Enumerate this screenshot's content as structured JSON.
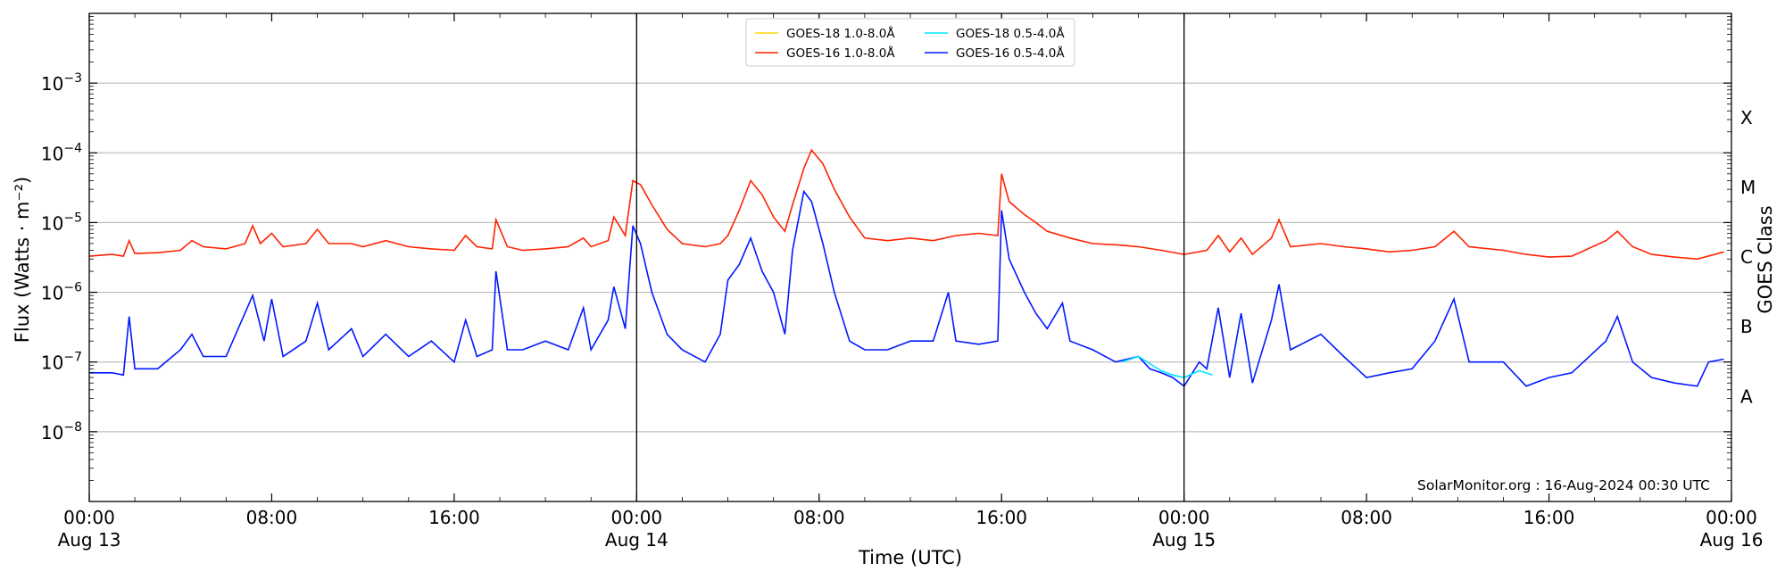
{
  "chart_data": {
    "type": "line",
    "xlabel": "Time (UTC)",
    "ylabel": "Flux (Watts · m⁻²)",
    "y2label": "GOES Class",
    "y_scale": "log",
    "ylim": [
      1e-09,
      0.01
    ],
    "xlim": [
      "2024-08-13 00:00",
      "2024-08-16 00:00"
    ],
    "grid": "horizontal",
    "legend_position": "top-center",
    "credit": "SolarMonitor.org : 16-Aug-2024 00:30 UTC",
    "y_ticks": [
      {
        "value": 1e-08,
        "base": "10",
        "exp": "−8"
      },
      {
        "value": 1e-07,
        "base": "10",
        "exp": "−7"
      },
      {
        "value": 1e-06,
        "base": "10",
        "exp": "−6"
      },
      {
        "value": 1e-05,
        "base": "10",
        "exp": "−5"
      },
      {
        "value": 0.0001,
        "base": "10",
        "exp": "−4"
      },
      {
        "value": 0.001,
        "base": "10",
        "exp": "−3"
      }
    ],
    "x_ticks": [
      {
        "time": "2024-08-13 00:00",
        "label": "00:00",
        "sublabel": "Aug 13"
      },
      {
        "time": "2024-08-13 08:00",
        "label": "08:00",
        "sublabel": ""
      },
      {
        "time": "2024-08-13 16:00",
        "label": "16:00",
        "sublabel": ""
      },
      {
        "time": "2024-08-14 00:00",
        "label": "00:00",
        "sublabel": "Aug 14"
      },
      {
        "time": "2024-08-14 08:00",
        "label": "08:00",
        "sublabel": ""
      },
      {
        "time": "2024-08-14 16:00",
        "label": "16:00",
        "sublabel": ""
      },
      {
        "time": "2024-08-15 00:00",
        "label": "00:00",
        "sublabel": "Aug 15"
      },
      {
        "time": "2024-08-15 08:00",
        "label": "08:00",
        "sublabel": ""
      },
      {
        "time": "2024-08-15 16:00",
        "label": "16:00",
        "sublabel": ""
      },
      {
        "time": "2024-08-16 00:00",
        "label": "00:00",
        "sublabel": "Aug 16"
      }
    ],
    "day_boundaries": [
      "2024-08-14 00:00",
      "2024-08-15 00:00"
    ],
    "class_labels": [
      {
        "label": "A",
        "value": 3.2e-08
      },
      {
        "label": "B",
        "value": 3.2e-07
      },
      {
        "label": "C",
        "value": 3.2e-06
      },
      {
        "label": "M",
        "value": 3.2e-05
      },
      {
        "label": "X",
        "value": 0.00032
      }
    ],
    "series": [
      {
        "name": "GOES-18 1.0-8.0Å",
        "color": "#ffd700",
        "points": []
      },
      {
        "name": "GOES-18 0.5-4.0Å",
        "color": "#00e5ff",
        "points": [
          [
            "2024-08-14 21:15",
            1e-07
          ],
          [
            "2024-08-14 22:00",
            1.2e-07
          ],
          [
            "2024-08-14 22:30",
            9.5e-08
          ],
          [
            "2024-08-14 23:00",
            7.5e-08
          ],
          [
            "2024-08-14 23:30",
            6.5e-08
          ],
          [
            "2024-08-15 00:00",
            6e-08
          ],
          [
            "2024-08-15 00:40",
            7.5e-08
          ],
          [
            "2024-08-15 01:15",
            6.5e-08
          ]
        ]
      },
      {
        "name": "GOES-16 1.0-8.0Å",
        "color": "#ff2200",
        "points": [
          [
            "2024-08-13 00:00",
            3.3e-06
          ],
          [
            "2024-08-13 01:00",
            3.5e-06
          ],
          [
            "2024-08-13 01:30",
            3.3e-06
          ],
          [
            "2024-08-13 01:45",
            5.5e-06
          ],
          [
            "2024-08-13 02:00",
            3.6e-06
          ],
          [
            "2024-08-13 03:00",
            3.7e-06
          ],
          [
            "2024-08-13 04:00",
            4e-06
          ],
          [
            "2024-08-13 04:30",
            5.5e-06
          ],
          [
            "2024-08-13 05:00",
            4.5e-06
          ],
          [
            "2024-08-13 06:00",
            4.2e-06
          ],
          [
            "2024-08-13 06:50",
            5e-06
          ],
          [
            "2024-08-13 07:10",
            9e-06
          ],
          [
            "2024-08-13 07:30",
            5e-06
          ],
          [
            "2024-08-13 08:00",
            7e-06
          ],
          [
            "2024-08-13 08:30",
            4.5e-06
          ],
          [
            "2024-08-13 09:30",
            5e-06
          ],
          [
            "2024-08-13 10:00",
            8e-06
          ],
          [
            "2024-08-13 10:30",
            5e-06
          ],
          [
            "2024-08-13 11:30",
            5e-06
          ],
          [
            "2024-08-13 12:00",
            4.5e-06
          ],
          [
            "2024-08-13 13:00",
            5.5e-06
          ],
          [
            "2024-08-13 14:00",
            4.5e-06
          ],
          [
            "2024-08-13 15:00",
            4.2e-06
          ],
          [
            "2024-08-13 16:00",
            4e-06
          ],
          [
            "2024-08-13 16:30",
            6.5e-06
          ],
          [
            "2024-08-13 17:00",
            4.5e-06
          ],
          [
            "2024-08-13 17:40",
            4.2e-06
          ],
          [
            "2024-08-13 17:50",
            1.1e-05
          ],
          [
            "2024-08-13 18:20",
            4.5e-06
          ],
          [
            "2024-08-13 19:00",
            4e-06
          ],
          [
            "2024-08-13 20:00",
            4.2e-06
          ],
          [
            "2024-08-13 21:00",
            4.5e-06
          ],
          [
            "2024-08-13 21:40",
            6e-06
          ],
          [
            "2024-08-13 22:00",
            4.5e-06
          ],
          [
            "2024-08-13 22:45",
            5.5e-06
          ],
          [
            "2024-08-13 23:00",
            1.2e-05
          ],
          [
            "2024-08-13 23:30",
            6.5e-06
          ],
          [
            "2024-08-13 23:50",
            4e-05
          ],
          [
            "2024-08-14 00:10",
            3.5e-05
          ],
          [
            "2024-08-14 00:40",
            1.8e-05
          ],
          [
            "2024-08-14 01:20",
            8e-06
          ],
          [
            "2024-08-14 02:00",
            5e-06
          ],
          [
            "2024-08-14 03:00",
            4.5e-06
          ],
          [
            "2024-08-14 03:40",
            5e-06
          ],
          [
            "2024-08-14 04:00",
            6.5e-06
          ],
          [
            "2024-08-14 04:30",
            1.5e-05
          ],
          [
            "2024-08-14 05:00",
            4e-05
          ],
          [
            "2024-08-14 05:30",
            2.5e-05
          ],
          [
            "2024-08-14 06:00",
            1.2e-05
          ],
          [
            "2024-08-14 06:30",
            7.5e-06
          ],
          [
            "2024-08-14 06:50",
            1.8e-05
          ],
          [
            "2024-08-14 07:20",
            6e-05
          ],
          [
            "2024-08-14 07:40",
            0.00011
          ],
          [
            "2024-08-14 08:10",
            7e-05
          ],
          [
            "2024-08-14 08:40",
            3e-05
          ],
          [
            "2024-08-14 09:20",
            1.2e-05
          ],
          [
            "2024-08-14 10:00",
            6e-06
          ],
          [
            "2024-08-14 11:00",
            5.5e-06
          ],
          [
            "2024-08-14 12:00",
            6e-06
          ],
          [
            "2024-08-14 13:00",
            5.5e-06
          ],
          [
            "2024-08-14 14:00",
            6.5e-06
          ],
          [
            "2024-08-14 15:00",
            7e-06
          ],
          [
            "2024-08-14 15:50",
            6.5e-06
          ],
          [
            "2024-08-14 16:00",
            5e-05
          ],
          [
            "2024-08-14 16:20",
            2e-05
          ],
          [
            "2024-08-14 17:00",
            1.3e-05
          ],
          [
            "2024-08-14 17:30",
            1e-05
          ],
          [
            "2024-08-14 18:00",
            7.5e-06
          ],
          [
            "2024-08-14 19:00",
            6e-06
          ],
          [
            "2024-08-14 20:00",
            5e-06
          ],
          [
            "2024-08-14 21:00",
            4.8e-06
          ],
          [
            "2024-08-14 22:00",
            4.5e-06
          ],
          [
            "2024-08-14 23:00",
            4e-06
          ],
          [
            "2024-08-15 00:00",
            3.5e-06
          ],
          [
            "2024-08-15 01:00",
            4e-06
          ],
          [
            "2024-08-15 01:30",
            6.5e-06
          ],
          [
            "2024-08-15 02:00",
            3.8e-06
          ],
          [
            "2024-08-15 02:30",
            6e-06
          ],
          [
            "2024-08-15 03:00",
            3.5e-06
          ],
          [
            "2024-08-15 03:50",
            6e-06
          ],
          [
            "2024-08-15 04:10",
            1.1e-05
          ],
          [
            "2024-08-15 04:40",
            4.5e-06
          ],
          [
            "2024-08-15 06:00",
            5e-06
          ],
          [
            "2024-08-15 07:00",
            4.5e-06
          ],
          [
            "2024-08-15 08:00",
            4.2e-06
          ],
          [
            "2024-08-15 09:00",
            3.8e-06
          ],
          [
            "2024-08-15 10:00",
            4e-06
          ],
          [
            "2024-08-15 11:00",
            4.5e-06
          ],
          [
            "2024-08-15 11:50",
            7.5e-06
          ],
          [
            "2024-08-15 12:30",
            4.5e-06
          ],
          [
            "2024-08-15 14:00",
            4e-06
          ],
          [
            "2024-08-15 15:00",
            3.5e-06
          ],
          [
            "2024-08-15 16:00",
            3.2e-06
          ],
          [
            "2024-08-15 17:00",
            3.3e-06
          ],
          [
            "2024-08-15 18:30",
            5.5e-06
          ],
          [
            "2024-08-15 19:00",
            7.5e-06
          ],
          [
            "2024-08-15 19:40",
            4.5e-06
          ],
          [
            "2024-08-15 20:30",
            3.5e-06
          ],
          [
            "2024-08-15 21:30",
            3.2e-06
          ],
          [
            "2024-08-15 22:30",
            3e-06
          ],
          [
            "2024-08-15 23:40",
            3.8e-06
          ]
        ]
      },
      {
        "name": "GOES-16 0.5-4.0Å",
        "color": "#0018ff",
        "points": [
          [
            "2024-08-13 00:00",
            7e-08
          ],
          [
            "2024-08-13 01:00",
            7e-08
          ],
          [
            "2024-08-13 01:30",
            6.5e-08
          ],
          [
            "2024-08-13 01:45",
            4.5e-07
          ],
          [
            "2024-08-13 02:00",
            8e-08
          ],
          [
            "2024-08-13 03:00",
            8e-08
          ],
          [
            "2024-08-13 04:00",
            1.5e-07
          ],
          [
            "2024-08-13 04:30",
            2.5e-07
          ],
          [
            "2024-08-13 05:00",
            1.2e-07
          ],
          [
            "2024-08-13 06:00",
            1.2e-07
          ],
          [
            "2024-08-13 07:10",
            9e-07
          ],
          [
            "2024-08-13 07:40",
            2e-07
          ],
          [
            "2024-08-13 08:00",
            8e-07
          ],
          [
            "2024-08-13 08:30",
            1.2e-07
          ],
          [
            "2024-08-13 09:30",
            2e-07
          ],
          [
            "2024-08-13 10:00",
            7e-07
          ],
          [
            "2024-08-13 10:30",
            1.5e-07
          ],
          [
            "2024-08-13 11:30",
            3e-07
          ],
          [
            "2024-08-13 12:00",
            1.2e-07
          ],
          [
            "2024-08-13 13:00",
            2.5e-07
          ],
          [
            "2024-08-13 14:00",
            1.2e-07
          ],
          [
            "2024-08-13 15:00",
            2e-07
          ],
          [
            "2024-08-13 16:00",
            1e-07
          ],
          [
            "2024-08-13 16:30",
            4e-07
          ],
          [
            "2024-08-13 17:00",
            1.2e-07
          ],
          [
            "2024-08-13 17:40",
            1.5e-07
          ],
          [
            "2024-08-13 17:50",
            2e-06
          ],
          [
            "2024-08-13 18:20",
            1.5e-07
          ],
          [
            "2024-08-13 19:00",
            1.5e-07
          ],
          [
            "2024-08-13 20:00",
            2e-07
          ],
          [
            "2024-08-13 21:00",
            1.5e-07
          ],
          [
            "2024-08-13 21:40",
            6e-07
          ],
          [
            "2024-08-13 22:00",
            1.5e-07
          ],
          [
            "2024-08-13 22:45",
            4e-07
          ],
          [
            "2024-08-13 23:00",
            1.2e-06
          ],
          [
            "2024-08-13 23:30",
            3e-07
          ],
          [
            "2024-08-13 23:50",
            9e-06
          ],
          [
            "2024-08-14 00:10",
            5e-06
          ],
          [
            "2024-08-14 00:40",
            1e-06
          ],
          [
            "2024-08-14 01:20",
            2.5e-07
          ],
          [
            "2024-08-14 02:00",
            1.5e-07
          ],
          [
            "2024-08-14 03:00",
            1e-07
          ],
          [
            "2024-08-14 03:40",
            2.5e-07
          ],
          [
            "2024-08-14 04:00",
            1.5e-06
          ],
          [
            "2024-08-14 04:30",
            2.5e-06
          ],
          [
            "2024-08-14 05:00",
            6e-06
          ],
          [
            "2024-08-14 05:30",
            2e-06
          ],
          [
            "2024-08-14 06:00",
            1e-06
          ],
          [
            "2024-08-14 06:30",
            2.5e-07
          ],
          [
            "2024-08-14 06:50",
            4e-06
          ],
          [
            "2024-08-14 07:20",
            2.8e-05
          ],
          [
            "2024-08-14 07:40",
            2e-05
          ],
          [
            "2024-08-14 08:10",
            5e-06
          ],
          [
            "2024-08-14 08:40",
            1e-06
          ],
          [
            "2024-08-14 09:20",
            2e-07
          ],
          [
            "2024-08-14 10:00",
            1.5e-07
          ],
          [
            "2024-08-14 11:00",
            1.5e-07
          ],
          [
            "2024-08-14 12:00",
            2e-07
          ],
          [
            "2024-08-14 13:00",
            2e-07
          ],
          [
            "2024-08-14 13:40",
            1e-06
          ],
          [
            "2024-08-14 14:00",
            2e-07
          ],
          [
            "2024-08-14 15:00",
            1.8e-07
          ],
          [
            "2024-08-14 15:50",
            2e-07
          ],
          [
            "2024-08-14 16:00",
            1.5e-05
          ],
          [
            "2024-08-14 16:20",
            3e-06
          ],
          [
            "2024-08-14 17:00",
            1e-06
          ],
          [
            "2024-08-14 17:30",
            5e-07
          ],
          [
            "2024-08-14 18:00",
            3e-07
          ],
          [
            "2024-08-14 18:40",
            7e-07
          ],
          [
            "2024-08-14 19:00",
            2e-07
          ],
          [
            "2024-08-14 20:00",
            1.5e-07
          ],
          [
            "2024-08-14 21:00",
            1e-07
          ],
          [
            "2024-08-14 22:00",
            1.2e-07
          ],
          [
            "2024-08-14 22:30",
            8e-08
          ],
          [
            "2024-08-14 23:00",
            7e-08
          ],
          [
            "2024-08-14 23:30",
            6e-08
          ],
          [
            "2024-08-15 00:00",
            4.5e-08
          ],
          [
            "2024-08-15 00:40",
            1e-07
          ],
          [
            "2024-08-15 01:00",
            8e-08
          ],
          [
            "2024-08-15 01:30",
            6e-07
          ],
          [
            "2024-08-15 02:00",
            6e-08
          ],
          [
            "2024-08-15 02:30",
            5e-07
          ],
          [
            "2024-08-15 03:00",
            5e-08
          ],
          [
            "2024-08-15 03:50",
            4e-07
          ],
          [
            "2024-08-15 04:10",
            1.3e-06
          ],
          [
            "2024-08-15 04:40",
            1.5e-07
          ],
          [
            "2024-08-15 06:00",
            2.5e-07
          ],
          [
            "2024-08-15 07:00",
            1.2e-07
          ],
          [
            "2024-08-15 08:00",
            6e-08
          ],
          [
            "2024-08-15 09:00",
            7e-08
          ],
          [
            "2024-08-15 10:00",
            8e-08
          ],
          [
            "2024-08-15 11:00",
            2e-07
          ],
          [
            "2024-08-15 11:50",
            8e-07
          ],
          [
            "2024-08-15 12:30",
            1e-07
          ],
          [
            "2024-08-15 14:00",
            1e-07
          ],
          [
            "2024-08-15 15:00",
            4.5e-08
          ],
          [
            "2024-08-15 16:00",
            6e-08
          ],
          [
            "2024-08-15 17:00",
            7e-08
          ],
          [
            "2024-08-15 18:30",
            2e-07
          ],
          [
            "2024-08-15 19:00",
            4.5e-07
          ],
          [
            "2024-08-15 19:40",
            1e-07
          ],
          [
            "2024-08-15 20:30",
            6e-08
          ],
          [
            "2024-08-15 21:30",
            5e-08
          ],
          [
            "2024-08-15 22:30",
            4.5e-08
          ],
          [
            "2024-08-15 23:00",
            1e-07
          ],
          [
            "2024-08-15 23:40",
            1.1e-07
          ]
        ]
      }
    ]
  }
}
